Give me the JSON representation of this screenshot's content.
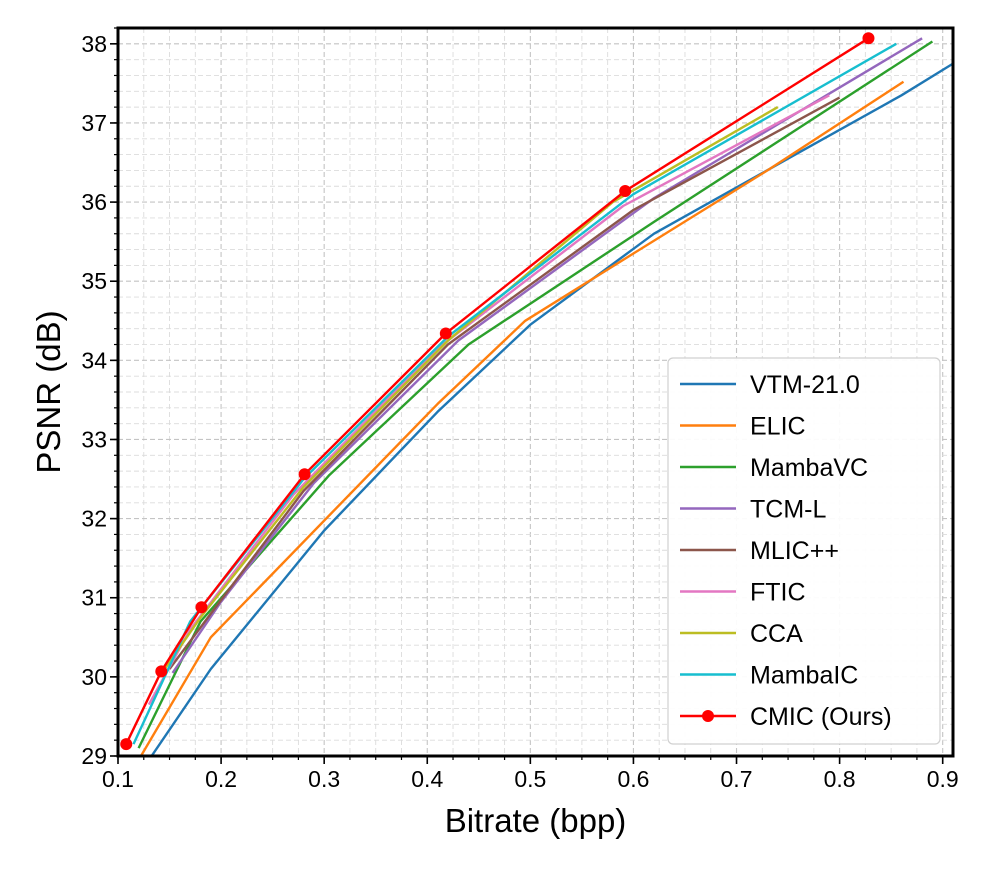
{
  "chart_data": {
    "type": "line",
    "title": "",
    "xlabel": "Bitrate (bpp)",
    "ylabel": "PSNR (dB)",
    "xlim": [
      0.1,
      0.91
    ],
    "ylim": [
      29,
      38.2
    ],
    "xticks": [
      0.1,
      0.2,
      0.3,
      0.4,
      0.5,
      0.6,
      0.7,
      0.8,
      0.9
    ],
    "xtick_labels": [
      "0.1",
      "0.2",
      "0.3",
      "0.4",
      "0.5",
      "0.6",
      "0.7",
      "0.8",
      "0.9"
    ],
    "yticks": [
      29,
      30,
      31,
      32,
      33,
      34,
      35,
      36,
      37,
      38
    ],
    "ytick_labels": [
      "29",
      "30",
      "31",
      "32",
      "33",
      "34",
      "35",
      "36",
      "37",
      "38"
    ],
    "grid": true,
    "minor_grid": true,
    "legend_position": "lower-right",
    "series": [
      {
        "name": "VTM-21.0",
        "color": "#1f77b4",
        "marker": "none",
        "x": [
          0.13,
          0.19,
          0.3,
          0.41,
          0.5,
          0.62,
          0.75,
          0.86,
          0.91
        ],
        "y": [
          28.95,
          30.1,
          31.85,
          33.35,
          34.45,
          35.6,
          36.55,
          37.35,
          37.75
        ]
      },
      {
        "name": "ELIC",
        "color": "#ff7f0e",
        "marker": "none",
        "x": [
          0.12,
          0.19,
          0.41,
          0.495,
          0.6,
          0.73,
          0.862
        ],
        "y": [
          28.95,
          30.5,
          33.45,
          34.5,
          35.35,
          36.4,
          37.52
        ]
      },
      {
        "name": "MambaVC",
        "color": "#2ca02c",
        "marker": "none",
        "x": [
          0.12,
          0.18,
          0.305,
          0.44,
          0.62,
          0.89
        ],
        "y": [
          29.1,
          30.7,
          32.55,
          34.2,
          35.75,
          38.03
        ]
      },
      {
        "name": "TCM-L",
        "color": "#9467bd",
        "marker": "none",
        "x": [
          0.153,
          0.2,
          0.29,
          0.43,
          0.62,
          0.88
        ],
        "y": [
          30.05,
          30.95,
          32.45,
          34.25,
          36.05,
          38.07
        ]
      },
      {
        "name": "MLIC++",
        "color": "#8c564b",
        "marker": "none",
        "x": [
          0.15,
          0.19,
          0.28,
          0.42,
          0.6,
          0.8
        ],
        "y": [
          30.1,
          30.8,
          32.35,
          34.2,
          35.9,
          37.32
        ]
      },
      {
        "name": "FTIC",
        "color": "#e377c2",
        "marker": "none",
        "x": [
          0.13,
          0.17,
          0.27,
          0.41,
          0.59,
          0.79
        ],
        "y": [
          29.65,
          30.6,
          32.3,
          34.15,
          35.95,
          37.35
        ]
      },
      {
        "name": "CCA",
        "color": "#bcbd22",
        "marker": "none",
        "x": [
          0.14,
          0.18,
          0.28,
          0.42,
          0.58,
          0.74
        ],
        "y": [
          30.0,
          30.75,
          32.4,
          34.25,
          36.0,
          37.2
        ]
      },
      {
        "name": "MambaIC",
        "color": "#17becf",
        "marker": "none",
        "x": [
          0.115,
          0.17,
          0.28,
          0.42,
          0.6,
          0.855
        ],
        "y": [
          29.15,
          30.7,
          32.5,
          34.3,
          36.1,
          38.0
        ]
      },
      {
        "name": "CMIC (Ours)",
        "color": "#ff0000",
        "marker": "circle",
        "x": [
          0.108,
          0.142,
          0.181,
          0.281,
          0.418,
          0.592,
          0.828
        ],
        "y": [
          29.15,
          30.07,
          30.88,
          32.56,
          34.34,
          36.14,
          38.07
        ]
      }
    ]
  }
}
